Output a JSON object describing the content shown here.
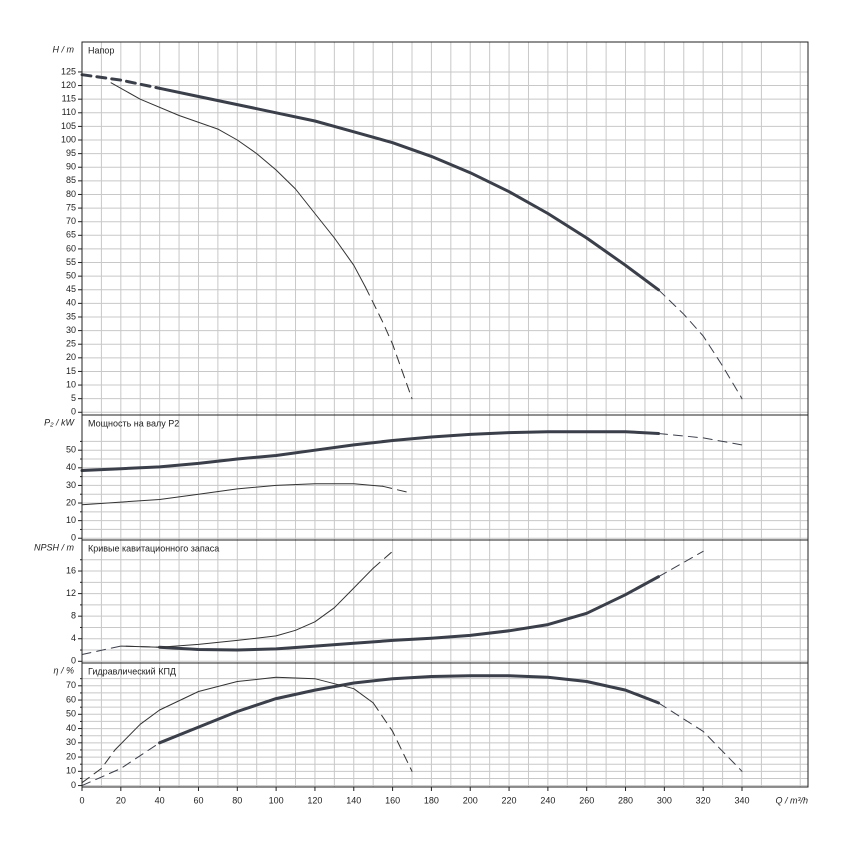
{
  "chart_data": [
    {
      "type": "line",
      "ylabel": "H / m",
      "title": "Напор",
      "xlim": [
        0,
        374
      ],
      "ylim": [
        -1,
        136
      ],
      "yticks": [
        0,
        5,
        10,
        15,
        20,
        25,
        30,
        35,
        40,
        45,
        50,
        55,
        60,
        65,
        70,
        75,
        80,
        85,
        90,
        95,
        100,
        105,
        110,
        115,
        120,
        125
      ],
      "series": [
        {
          "color": "#3a3f4a",
          "width": 3,
          "dashed": true,
          "x": [
            0,
            20,
            40
          ],
          "values": [
            124,
            122,
            119
          ]
        },
        {
          "color": "#3a3f4a",
          "width": 3,
          "dashed": false,
          "x": [
            40,
            60,
            80,
            100,
            120,
            140,
            160,
            180,
            200,
            220,
            240,
            260,
            280,
            297
          ],
          "values": [
            119,
            116,
            113,
            110,
            107,
            103,
            99,
            94,
            88,
            81,
            73,
            64,
            54,
            45
          ]
        },
        {
          "color": "#3a3f4a",
          "width": 1,
          "dashed": true,
          "x": [
            297,
            310,
            320,
            330,
            340
          ],
          "values": [
            45,
            36,
            28,
            17,
            5
          ]
        },
        {
          "color": "#333333",
          "width": 1,
          "dashed": false,
          "x": [
            15,
            30,
            50,
            70,
            80,
            90,
            100,
            110,
            120,
            130,
            140,
            146
          ],
          "values": [
            121,
            115,
            109,
            104,
            100,
            95,
            89,
            82,
            73,
            64,
            54,
            46
          ]
        },
        {
          "color": "#333333",
          "width": 1,
          "dashed": true,
          "x": [
            146,
            155,
            160,
            165,
            170
          ],
          "values": [
            46,
            33,
            25,
            15,
            5
          ]
        }
      ]
    },
    {
      "type": "line",
      "ylabel": "P₂ / kW",
      "title": "Мощность на валу P2",
      "xlim": [
        0,
        374
      ],
      "ylim": [
        -1,
        70
      ],
      "yticks": [
        0,
        10,
        20,
        30,
        40,
        50
      ],
      "series": [
        {
          "color": "#3a3f4a",
          "width": 3,
          "dashed": false,
          "x": [
            0,
            20,
            40,
            60,
            80,
            100,
            120,
            140,
            160,
            180,
            200,
            220,
            240,
            260,
            280,
            297
          ],
          "values": [
            38.5,
            39.5,
            40.5,
            42.5,
            45,
            47,
            50,
            53,
            55.5,
            57.5,
            59,
            60,
            60.5,
            60.5,
            60.5,
            59.5
          ]
        },
        {
          "color": "#3a3f4a",
          "width": 1,
          "dashed": true,
          "x": [
            297,
            320,
            340
          ],
          "values": [
            59.5,
            57,
            53
          ]
        },
        {
          "color": "#333333",
          "width": 1,
          "dashed": false,
          "x": [
            0,
            20,
            40,
            60,
            80,
            100,
            120,
            140,
            155
          ],
          "values": [
            19,
            20.5,
            22,
            25,
            28,
            30,
            31,
            31,
            29.5
          ]
        },
        {
          "color": "#333333",
          "width": 1,
          "dashed": true,
          "x": [
            155,
            170
          ],
          "values": [
            29.5,
            25.5
          ]
        }
      ]
    },
    {
      "type": "line",
      "ylabel": "NPSH / m",
      "title": "Кривые кавитационного запаса",
      "xlim": [
        0,
        374
      ],
      "ylim": [
        -0.3,
        21.5
      ],
      "yticks": [
        0,
        4,
        8,
        12,
        16
      ],
      "series": [
        {
          "color": "#3a3f4a",
          "width": 1,
          "dashed": true,
          "x": [
            0,
            20,
            40
          ],
          "values": [
            1.2,
            2.7,
            2.5
          ]
        },
        {
          "color": "#3a3f4a",
          "width": 3,
          "dashed": false,
          "x": [
            40,
            60,
            80,
            100,
            120,
            140,
            160,
            180,
            200,
            220,
            240,
            260,
            280,
            297
          ],
          "values": [
            2.5,
            2.1,
            2,
            2.2,
            2.7,
            3.2,
            3.7,
            4.1,
            4.6,
            5.4,
            6.5,
            8.5,
            11.8,
            15
          ]
        },
        {
          "color": "#3a3f4a",
          "width": 1,
          "dashed": true,
          "x": [
            297,
            320
          ],
          "values": [
            15,
            19.5
          ]
        },
        {
          "color": "#333333",
          "width": 1,
          "dashed": false,
          "x": [
            20,
            40,
            60,
            80,
            100,
            110,
            120,
            130,
            140,
            150
          ],
          "values": [
            2.7,
            2.5,
            3,
            3.7,
            4.5,
            5.5,
            7,
            9.5,
            13,
            16.5
          ]
        },
        {
          "color": "#333333",
          "width": 1,
          "dashed": true,
          "x": [
            150,
            160
          ],
          "values": [
            16.5,
            19.5
          ]
        }
      ]
    },
    {
      "type": "line",
      "ylabel": "η / %",
      "title": "Гидравлический КПД",
      "xlabel": "Q / m³/h",
      "xlim": [
        0,
        374
      ],
      "ylim": [
        -1,
        86
      ],
      "yticks": [
        0,
        10,
        20,
        30,
        40,
        50,
        60,
        70
      ],
      "xticks": [
        0,
        20,
        40,
        60,
        80,
        100,
        120,
        140,
        160,
        180,
        200,
        220,
        240,
        260,
        280,
        300,
        320,
        340
      ],
      "series": [
        {
          "color": "#3a3f4a",
          "width": 1,
          "dashed": true,
          "x": [
            0,
            20,
            40
          ],
          "values": [
            0,
            12,
            30
          ]
        },
        {
          "color": "#3a3f4a",
          "width": 3,
          "dashed": false,
          "x": [
            40,
            60,
            80,
            100,
            120,
            140,
            160,
            180,
            200,
            220,
            240,
            260,
            280,
            297
          ],
          "values": [
            30,
            41,
            52,
            61,
            67,
            72,
            75,
            76.5,
            77,
            77,
            76,
            73,
            67,
            58
          ]
        },
        {
          "color": "#3a3f4a",
          "width": 1,
          "dashed": true,
          "x": [
            297,
            320,
            340
          ],
          "values": [
            58,
            38,
            10
          ]
        },
        {
          "color": "#333333",
          "width": 1,
          "dashed": true,
          "x": [
            0,
            10,
            17
          ],
          "values": [
            2,
            12,
            25
          ]
        },
        {
          "color": "#333333",
          "width": 1,
          "dashed": false,
          "x": [
            17,
            30,
            40,
            60,
            80,
            100,
            120,
            140,
            150
          ],
          "values": [
            25,
            43,
            53,
            66,
            73,
            76,
            75,
            68,
            58
          ]
        },
        {
          "color": "#333333",
          "width": 1,
          "dashed": true,
          "x": [
            150,
            160,
            170
          ],
          "values": [
            58,
            38,
            10
          ]
        }
      ]
    }
  ]
}
